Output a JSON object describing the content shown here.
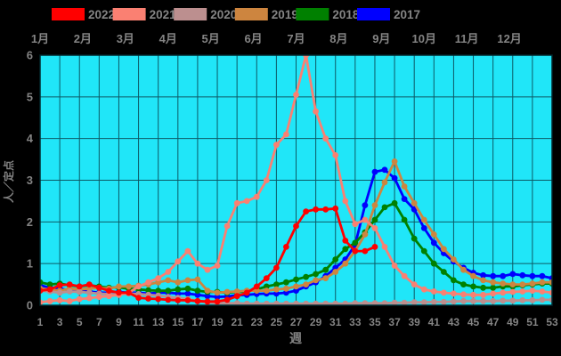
{
  "chart_data": {
    "type": "line",
    "xlabel": "週",
    "ylabel": "人／定点",
    "xlim": [
      1,
      53
    ],
    "ylim": [
      0,
      6
    ],
    "grid": true,
    "legend_position": "top",
    "x_tick_labels": [
      "1",
      "3",
      "5",
      "7",
      "9",
      "11",
      "13",
      "15",
      "17",
      "19",
      "21",
      "23",
      "25",
      "27",
      "29",
      "31",
      "33",
      "35",
      "37",
      "39",
      "41",
      "43",
      "45",
      "47",
      "49",
      "51",
      "53"
    ],
    "y_tick_labels": [
      "0",
      "1",
      "2",
      "3",
      "4",
      "5",
      "6"
    ],
    "month_labels": [
      "1月",
      "2月",
      "3月",
      "4月",
      "5月",
      "6月",
      "7月",
      "8月",
      "9月",
      "10月",
      "11月",
      "12月"
    ],
    "colors": {
      "plot_background": "#20e6f8",
      "figure_background": "#000000",
      "grid_line": "#0c5a66",
      "frame": "#02272c",
      "label_text": "#848484"
    },
    "x": [
      1,
      2,
      3,
      4,
      5,
      6,
      7,
      8,
      9,
      10,
      11,
      12,
      13,
      14,
      15,
      16,
      17,
      18,
      19,
      20,
      21,
      22,
      23,
      24,
      25,
      26,
      27,
      28,
      29,
      30,
      31,
      32,
      33,
      34,
      35,
      36,
      37,
      38,
      39,
      40,
      41,
      42,
      43,
      44,
      45,
      46,
      47,
      48,
      49,
      50,
      51,
      52,
      53
    ],
    "series": [
      {
        "name": "2022",
        "color": "#ff0000",
        "values": [
          0.35,
          0.38,
          0.48,
          0.5,
          0.45,
          0.5,
          0.42,
          0.35,
          0.3,
          0.3,
          0.18,
          0.16,
          0.15,
          0.13,
          0.12,
          0.12,
          0.1,
          0.09,
          0.09,
          0.13,
          0.22,
          0.3,
          0.45,
          0.65,
          0.9,
          1.4,
          1.9,
          2.25,
          2.3,
          2.3,
          2.32,
          1.55,
          1.3,
          1.3,
          1.4,
          null,
          null,
          null,
          null,
          null,
          null,
          null,
          null,
          null,
          null,
          null,
          null,
          null,
          null,
          null,
          null,
          null,
          null
        ]
      },
      {
        "name": "2021",
        "color": "#fa8072",
        "values": [
          0.07,
          0.1,
          0.12,
          0.1,
          0.15,
          0.17,
          0.2,
          0.22,
          0.25,
          0.3,
          0.45,
          0.55,
          0.65,
          0.8,
          1.05,
          1.3,
          1.0,
          0.85,
          0.95,
          1.9,
          2.45,
          2.5,
          2.6,
          3.0,
          3.85,
          4.1,
          5.05,
          6.0,
          4.65,
          4.0,
          3.6,
          2.5,
          1.95,
          2.05,
          1.85,
          1.4,
          0.95,
          0.7,
          0.5,
          0.38,
          0.33,
          0.3,
          0.28,
          0.26,
          0.25,
          0.25,
          0.28,
          0.3,
          0.32,
          0.33,
          0.35,
          0.33,
          0.3
        ]
      },
      {
        "name": "2020",
        "color": "#bc8f8f",
        "values": [
          0.35,
          0.33,
          0.3,
          0.33,
          0.32,
          0.3,
          0.28,
          0.27,
          0.26,
          0.28,
          0.27,
          0.25,
          0.23,
          0.2,
          0.18,
          0.15,
          0.1,
          0.07,
          0.05,
          0.05,
          0.05,
          0.04,
          0.04,
          0.04,
          0.04,
          0.04,
          0.04,
          0.04,
          0.04,
          0.04,
          0.04,
          0.04,
          0.05,
          0.05,
          0.05,
          0.05,
          0.06,
          0.06,
          0.07,
          0.07,
          0.08,
          0.08,
          0.09,
          0.1,
          0.1,
          0.1,
          0.1,
          0.11,
          0.11,
          0.12,
          0.12,
          0.13,
          0.13
        ]
      },
      {
        "name": "2019",
        "color": "#cd853f",
        "values": [
          0.4,
          0.38,
          0.35,
          0.4,
          0.38,
          0.4,
          0.42,
          0.4,
          0.45,
          0.45,
          0.47,
          0.5,
          0.55,
          0.6,
          0.55,
          0.6,
          0.62,
          0.35,
          0.3,
          0.32,
          0.33,
          0.35,
          0.35,
          0.35,
          0.38,
          0.4,
          0.45,
          0.5,
          0.6,
          0.65,
          0.8,
          1.0,
          1.3,
          1.7,
          2.4,
          2.95,
          3.45,
          2.85,
          2.45,
          2.05,
          1.7,
          1.35,
          1.1,
          0.85,
          0.7,
          0.6,
          0.55,
          0.52,
          0.5,
          0.5,
          0.52,
          0.55,
          0.55
        ]
      },
      {
        "name": "2018",
        "color": "#008000",
        "values": [
          0.55,
          0.5,
          0.52,
          0.48,
          0.45,
          0.48,
          0.45,
          0.42,
          0.43,
          0.4,
          0.38,
          0.36,
          0.35,
          0.35,
          0.38,
          0.4,
          0.35,
          0.32,
          0.32,
          0.3,
          0.32,
          0.33,
          0.38,
          0.45,
          0.5,
          0.55,
          0.62,
          0.68,
          0.75,
          0.85,
          1.1,
          1.35,
          1.5,
          1.75,
          2.05,
          2.35,
          2.45,
          2.05,
          1.6,
          1.3,
          1.0,
          0.8,
          0.6,
          0.5,
          0.45,
          0.42,
          0.42,
          0.45,
          0.45,
          0.48,
          0.5,
          0.52,
          0.52
        ]
      },
      {
        "name": "2017",
        "color": "#0000ff",
        "values": [
          0.48,
          0.42,
          0.4,
          0.36,
          0.35,
          0.33,
          0.3,
          0.3,
          0.32,
          0.3,
          0.3,
          0.28,
          0.3,
          0.3,
          0.28,
          0.28,
          0.25,
          0.22,
          0.2,
          0.21,
          0.24,
          0.25,
          0.27,
          0.28,
          0.28,
          0.3,
          0.35,
          0.45,
          0.55,
          0.7,
          0.9,
          1.1,
          1.45,
          2.4,
          3.2,
          3.25,
          3.05,
          2.55,
          2.3,
          1.85,
          1.5,
          1.25,
          1.05,
          0.9,
          0.78,
          0.72,
          0.7,
          0.7,
          0.75,
          0.72,
          0.7,
          0.7,
          0.65
        ]
      }
    ]
  }
}
